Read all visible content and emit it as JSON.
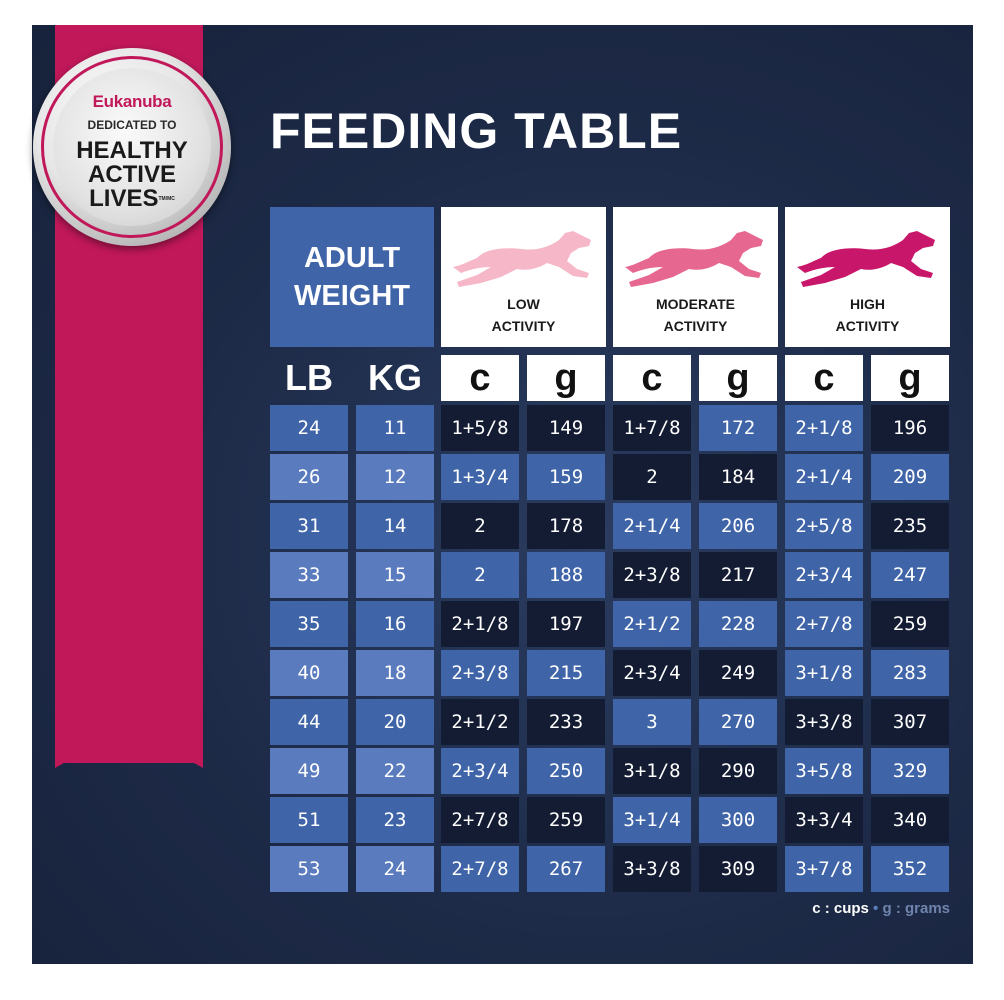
{
  "seal": {
    "brand": "Eukanuba",
    "tagline": "DEDICATED TO",
    "line1": "HEALTHY",
    "line2": "ACTIVE",
    "line3": "LIVES",
    "mark": "TM/MC"
  },
  "title": "FEEDING TABLE",
  "weight_header": {
    "line1": "ADULT",
    "line2": "WEIGHT"
  },
  "activities": [
    {
      "line1": "LOW",
      "line2": "ACTIVITY",
      "dog_icon": "running-dog-icon",
      "color": "#f6b8c8"
    },
    {
      "line1": "MODERATE",
      "line2": "ACTIVITY",
      "dog_icon": "running-dog-icon",
      "color": "#e6678f"
    },
    {
      "line1": "HIGH",
      "line2": "ACTIVITY",
      "dog_icon": "running-dog-icon",
      "color": "#c8176a"
    }
  ],
  "columns": [
    "LB",
    "KG",
    "c",
    "g",
    "c",
    "g",
    "c",
    "g"
  ],
  "rows": [
    [
      "24",
      "11",
      "1+5/8",
      "149",
      "1+7/8",
      "172",
      "2+1/8",
      "196"
    ],
    [
      "26",
      "12",
      "1+3/4",
      "159",
      "2",
      "184",
      "2+1/4",
      "209"
    ],
    [
      "31",
      "14",
      "2",
      "178",
      "2+1/4",
      "206",
      "2+5/8",
      "235"
    ],
    [
      "33",
      "15",
      "2",
      "188",
      "2+3/8",
      "217",
      "2+3/4",
      "247"
    ],
    [
      "35",
      "16",
      "2+1/8",
      "197",
      "2+1/2",
      "228",
      "2+7/8",
      "259"
    ],
    [
      "40",
      "18",
      "2+3/8",
      "215",
      "2+3/4",
      "249",
      "3+1/8",
      "283"
    ],
    [
      "44",
      "20",
      "2+1/2",
      "233",
      "3",
      "270",
      "3+3/8",
      "307"
    ],
    [
      "49",
      "22",
      "2+3/4",
      "250",
      "3+1/8",
      "290",
      "3+5/8",
      "329"
    ],
    [
      "51",
      "23",
      "2+7/8",
      "259",
      "3+1/4",
      "300",
      "3+3/4",
      "340"
    ],
    [
      "53",
      "24",
      "2+7/8",
      "267",
      "3+3/8",
      "309",
      "3+7/8",
      "352"
    ]
  ],
  "legend": {
    "cups": "c : cups",
    "sep": "•",
    "grams": "g : grams"
  },
  "colors": {
    "background": "#1d2a47",
    "ribbon": "#c1185a",
    "blue": "#3f65a8",
    "blue_light": "#5a7bbd",
    "dark": "#141c33"
  }
}
